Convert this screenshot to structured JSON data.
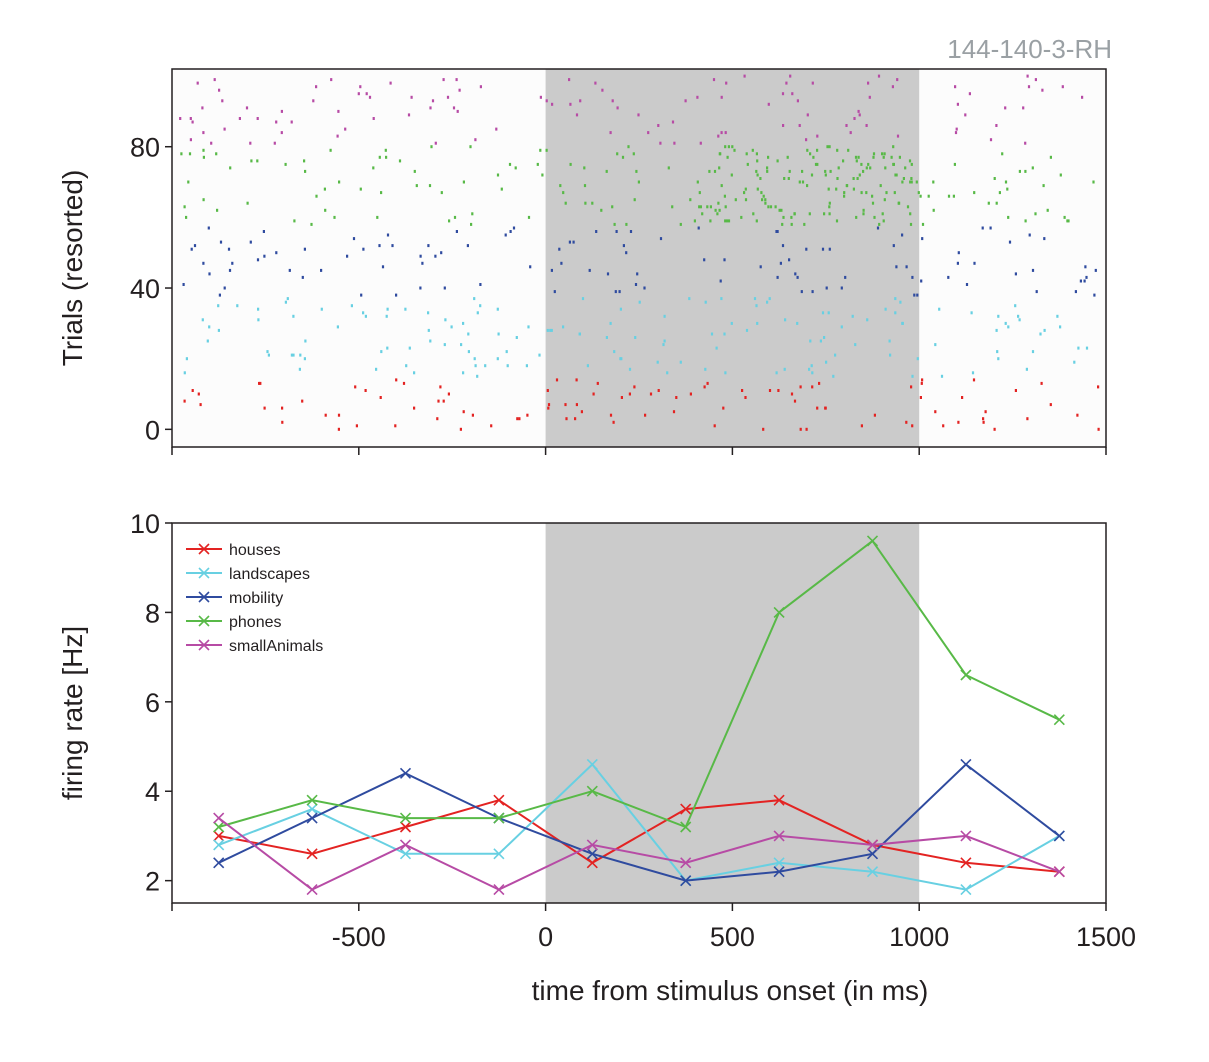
{
  "unit_id": "144-140-3-RH",
  "colors": {
    "houses": "#e32322",
    "landscapes": "#68d0e2",
    "mobility": "#2f4b9f",
    "phones": "#58b947",
    "smallAnimals": "#b74ba5",
    "stimulus_shade": "#cbcbcb",
    "axis": "#231f20"
  },
  "chart_data": [
    {
      "type": "scatter",
      "name": "raster",
      "ylabel": "Trials (resorted)",
      "xlim": [
        -1000,
        1500
      ],
      "ylim": [
        -5,
        102
      ],
      "yticks": [
        0,
        40,
        80
      ],
      "xticks": [
        -500,
        0,
        500,
        1000,
        1500
      ],
      "stimulus_window": [
        0,
        1000
      ],
      "groups": [
        {
          "category": "houses",
          "trial_range": [
            0,
            14
          ]
        },
        {
          "category": "landscapes",
          "trial_range": [
            15,
            37
          ]
        },
        {
          "category": "mobility",
          "trial_range": [
            38,
            57
          ]
        },
        {
          "category": "phones",
          "trial_range": [
            58,
            80
          ]
        },
        {
          "category": "smallAnimals",
          "trial_range": [
            81,
            100
          ]
        }
      ],
      "spike_density_note": "phones trials show dense spiking between ~400 and ~1000 ms"
    },
    {
      "type": "line",
      "name": "psth",
      "ylabel": "firing rate [Hz]",
      "xlabel": "time from stimulus onset (in ms)",
      "xlim": [
        -1000,
        1500
      ],
      "ylim": [
        1.5,
        10
      ],
      "yticks": [
        2,
        4,
        6,
        8,
        10
      ],
      "xticks": [
        -500,
        0,
        500,
        1000,
        1500
      ],
      "xticklabels": [
        "-500",
        "0",
        "500",
        "1000",
        "1500"
      ],
      "stimulus_window": [
        0,
        1000
      ],
      "x": [
        -875,
        -625,
        -375,
        -125,
        125,
        375,
        625,
        875,
        1125,
        1375
      ],
      "series": [
        {
          "name": "houses",
          "values": [
            3.0,
            2.6,
            3.2,
            3.8,
            2.4,
            3.6,
            3.8,
            2.8,
            2.4,
            2.2
          ]
        },
        {
          "name": "landscapes",
          "values": [
            2.8,
            3.6,
            2.6,
            2.6,
            4.6,
            2.0,
            2.4,
            2.2,
            1.8,
            3.0
          ]
        },
        {
          "name": "mobility",
          "values": [
            2.4,
            3.4,
            4.4,
            3.4,
            2.6,
            2.0,
            2.2,
            2.6,
            4.6,
            3.0
          ]
        },
        {
          "name": "phones",
          "values": [
            3.2,
            3.8,
            3.4,
            3.4,
            4.0,
            3.2,
            8.0,
            9.6,
            6.6,
            5.6
          ]
        },
        {
          "name": "smallAnimals",
          "values": [
            3.4,
            1.8,
            2.8,
            1.8,
            2.8,
            2.4,
            3.0,
            2.8,
            3.0,
            2.2
          ]
        }
      ],
      "legend": [
        "houses",
        "landscapes",
        "mobility",
        "phones",
        "smallAnimals"
      ],
      "legend_position": "top-left"
    }
  ]
}
